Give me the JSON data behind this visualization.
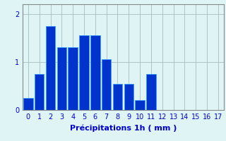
{
  "values": [
    0.25,
    0.75,
    1.75,
    1.3,
    1.3,
    1.55,
    1.55,
    1.05,
    0.55,
    0.55,
    0.2,
    0.75,
    0,
    0,
    0,
    0,
    0,
    0
  ],
  "categories": [
    0,
    1,
    2,
    3,
    4,
    5,
    6,
    7,
    8,
    9,
    10,
    11,
    12,
    13,
    14,
    15,
    16,
    17
  ],
  "bar_color": "#0033cc",
  "bar_edge_color": "#3399ff",
  "background_color": "#dff5f5",
  "grid_color": "#aabbbb",
  "xlabel": "Précipitations 1h ( mm )",
  "ylim": [
    0,
    2.2
  ],
  "yticks": [
    0,
    1,
    2
  ],
  "xlim": [
    -0.5,
    17.5
  ],
  "xlabel_fontsize": 8,
  "tick_fontsize": 7,
  "label_color": "#0000cc"
}
